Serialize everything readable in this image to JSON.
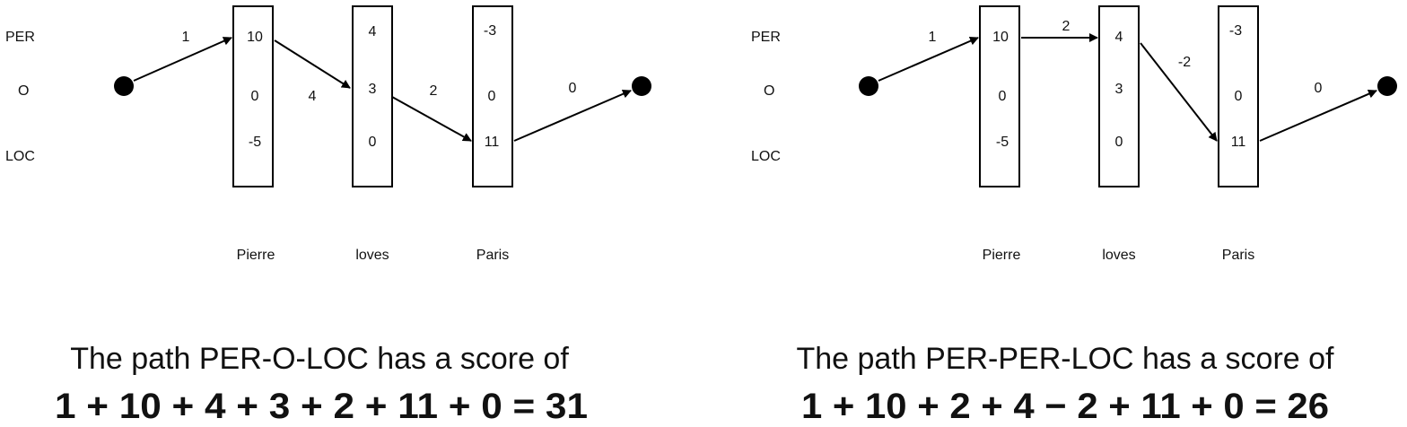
{
  "panels": [
    {
      "tags": [
        "PER",
        "O",
        "LOC"
      ],
      "words": [
        "Pierre",
        "loves",
        "Paris"
      ],
      "columns": [
        [
          "10",
          "0",
          "-5"
        ],
        [
          "4",
          "3",
          "0"
        ],
        [
          "-3",
          "0",
          "11"
        ]
      ],
      "edges": [
        "1",
        "4",
        "2",
        "0"
      ],
      "caption": "The path PER-O-LOC has a score of",
      "formula": "1 + 10 + 4 + 3 + 2 + 11 + 0 = 31"
    },
    {
      "tags": [
        "PER",
        "O",
        "LOC"
      ],
      "words": [
        "Pierre",
        "loves",
        "Paris"
      ],
      "columns": [
        [
          "10",
          "0",
          "-5"
        ],
        [
          "4",
          "3",
          "0"
        ],
        [
          "-3",
          "0",
          "11"
        ]
      ],
      "edges": [
        "1",
        "2",
        "-2",
        "0"
      ],
      "caption": "The path PER-PER-LOC has a score of",
      "formula": "1 + 10 + 2 + 4 − 2 + 11 + 0 = 26"
    }
  ]
}
